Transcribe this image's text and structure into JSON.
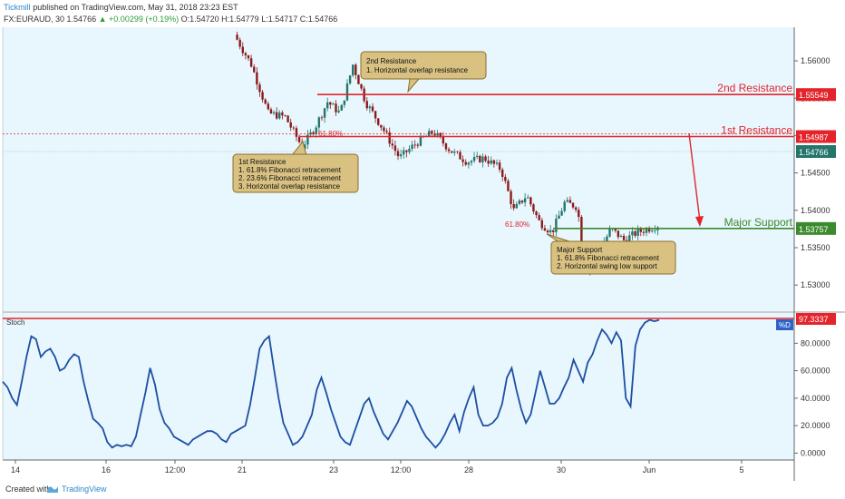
{
  "header": {
    "publisher": "Tickmill",
    "published_text": "published on TradingView.com, May 31, 2018 23:23 EST",
    "symbol": "FX:EURAUD, 30",
    "last": "1.54766",
    "change": "+0.00299 (+0.19%)",
    "ohlc": "O:1.54720 H:1.54779 L:1.54717 C:1.54766"
  },
  "footer": {
    "created_with": "Created with",
    "brand": "TradingView"
  },
  "chart_data": [
    {
      "type": "candlestick",
      "symbol": "FX:EURAUD",
      "interval": "30",
      "x_ticks": [
        "14",
        "16",
        "12:00",
        "21",
        "23",
        "12:00",
        "28",
        "30",
        "Jun",
        "5"
      ],
      "y_ticks": [
        "1.56000",
        "1.55500",
        "1.55000",
        "1.54500",
        "1.54000",
        "1.53500",
        "1.53000"
      ],
      "ylim": [
        1.5265,
        1.5645
      ],
      "current_price": "1.54766",
      "price_path": [
        [
          0.0,
          1.5635
        ],
        [
          0.04,
          1.5595
        ],
        [
          0.08,
          1.553
        ],
        [
          0.12,
          1.5525
        ],
        [
          0.16,
          1.5485
        ],
        [
          0.19,
          1.551
        ],
        [
          0.22,
          1.5545
        ],
        [
          0.25,
          1.553
        ],
        [
          0.28,
          1.5595
        ],
        [
          0.31,
          1.5545
        ],
        [
          0.35,
          1.551
        ],
        [
          0.39,
          1.547
        ],
        [
          0.43,
          1.549
        ],
        [
          0.47,
          1.5505
        ],
        [
          0.51,
          1.548
        ],
        [
          0.55,
          1.5465
        ],
        [
          0.59,
          1.547
        ],
        [
          0.63,
          1.5455
        ],
        [
          0.66,
          1.54
        ],
        [
          0.69,
          1.542
        ],
        [
          0.72,
          1.5385
        ],
        [
          0.75,
          1.537
        ],
        [
          0.78,
          1.541
        ],
        [
          0.81,
          1.5405
        ],
        [
          0.83,
          1.532
        ],
        [
          0.86,
          1.5345
        ],
        [
          0.89,
          1.5375
        ],
        [
          0.92,
          1.536
        ],
        [
          0.95,
          1.537
        ],
        [
          1.0,
          1.538
        ]
      ],
      "levels": [
        {
          "label": "2nd Resistance",
          "value": "1.55549",
          "color": "#e3242b"
        },
        {
          "label": "1st Resistance",
          "value": "1.54987",
          "color": "#e3242b"
        },
        {
          "label": "Major Support",
          "value": "1.53757",
          "color": "#3c8a2e"
        }
      ],
      "fib_labels": [
        "61.80%",
        "61.80%"
      ],
      "annotations": [
        {
          "title": "2nd Resistance",
          "lines": [
            "1. Horizontal overlap resistance"
          ]
        },
        {
          "title": "1st Resistance",
          "lines": [
            "1. 61.8% Fibonacci retracement",
            "2. 23.6% Fibonacci retracement",
            "3. Horizontal overlap resistance"
          ]
        },
        {
          "title": "Major Support",
          "lines": [
            "1. 61.8% Fibonacci retracement",
            "2. Horizontal swing low support"
          ]
        }
      ]
    },
    {
      "type": "line",
      "title": "Stoch",
      "series": [
        {
          "name": "%D",
          "values": [
            52,
            48,
            40,
            35,
            52,
            70,
            85,
            83,
            70,
            74,
            76,
            70,
            60,
            62,
            68,
            72,
            70,
            52,
            38,
            25,
            22,
            18,
            8,
            4,
            6,
            5,
            6,
            5,
            12,
            28,
            44,
            62,
            50,
            32,
            22,
            18,
            12,
            10,
            8,
            6,
            10,
            12,
            14,
            16,
            16,
            14,
            10,
            8,
            14,
            16,
            18,
            20,
            35,
            55,
            76,
            82,
            85,
            62,
            40,
            22,
            14,
            6,
            8,
            12,
            20,
            28,
            46,
            55,
            44,
            32,
            22,
            12,
            8,
            6,
            16,
            26,
            36,
            40,
            30,
            22,
            14,
            10,
            16,
            22,
            30,
            38,
            34,
            26,
            18,
            12,
            8,
            4,
            8,
            14,
            22,
            28,
            16,
            30,
            40,
            48,
            28,
            20,
            20,
            22,
            26,
            36,
            55,
            62,
            46,
            32,
            22,
            28,
            44,
            60,
            48,
            36,
            36,
            40,
            48,
            55,
            68,
            60,
            52,
            66,
            72,
            82,
            90,
            86,
            80,
            88,
            82,
            40,
            34,
            78,
            90,
            95,
            97,
            96,
            97
          ]
        }
      ],
      "y_ticks": [
        "80.0000",
        "60.0000",
        "40.0000",
        "20.0000",
        "0.0000"
      ],
      "ylim": [
        -5,
        102
      ],
      "current_value": "97.3337",
      "legend": "%D"
    }
  ],
  "colors": {
    "resistance": "#e3242b",
    "support": "#3c8a2e",
    "stoch": "#1d4fa3",
    "up": "#24756a",
    "down": "#8a1b1b"
  }
}
